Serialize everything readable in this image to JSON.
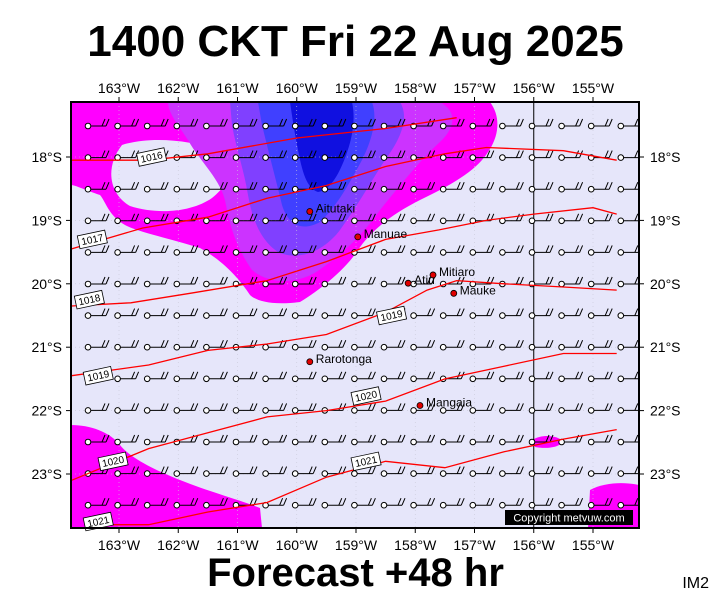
{
  "header": {
    "title": "1400 CKT Fri 22 Aug 2025"
  },
  "footer": {
    "subtitle": "Forecast +48 hr",
    "image_code": "IM2",
    "copyright": "Copyright metvuw.com"
  },
  "axes": {
    "lon_labels": [
      "163°W",
      "162°W",
      "161°W",
      "160°W",
      "159°W",
      "158°W",
      "157°W",
      "156°W",
      "155°W"
    ],
    "lat_labels": [
      "18°S",
      "19°S",
      "20°S",
      "21°S",
      "22°S",
      "23°S"
    ]
  },
  "colors": {
    "background": "#e6e6fa",
    "rain_light": "#ff00ff",
    "rain_medium": "#cc33ff",
    "rain_heavy": "#8040ff",
    "rain_heavier": "#4040ff",
    "rain_max": "#1010e0",
    "isobar": "#ff0000"
  },
  "places": [
    {
      "name": "Aitutaki",
      "lon": -159.78,
      "lat": -18.86
    },
    {
      "name": "Manuae",
      "lon": -158.97,
      "lat": -19.26
    },
    {
      "name": "Atiu",
      "lon": -158.12,
      "lat": -19.99
    },
    {
      "name": "Mitiaro",
      "lon": -157.7,
      "lat": -19.86
    },
    {
      "name": "Mauke",
      "lon": -157.35,
      "lat": -20.15
    },
    {
      "name": "Rarotonga",
      "lon": -159.78,
      "lat": -21.23
    },
    {
      "name": "Mangaia",
      "lon": -157.92,
      "lat": -21.92
    }
  ],
  "isobars": [
    {
      "label": "1016",
      "label_lon": -162.45,
      "label_lat": -18.0,
      "points": [
        [
          -163.8,
          -18.05
        ],
        [
          -162.5,
          -18.05
        ],
        [
          -161.5,
          -17.95
        ],
        [
          -160.0,
          -17.7
        ],
        [
          -158.5,
          -17.55
        ],
        [
          -157.3,
          -17.38
        ]
      ]
    },
    {
      "label": "1017",
      "label_lon": -163.45,
      "label_lat": -19.3,
      "points": [
        [
          -163.8,
          -19.45
        ],
        [
          -162.6,
          -19.12
        ],
        [
          -161.5,
          -18.95
        ],
        [
          -160.5,
          -18.65
        ],
        [
          -159.5,
          -18.45
        ],
        [
          -158.5,
          -18.15
        ],
        [
          -157.5,
          -17.95
        ],
        [
          -156.8,
          -17.85
        ],
        [
          -155.5,
          -17.9
        ],
        [
          -154.6,
          -18.05
        ]
      ]
    },
    {
      "label": "1018",
      "label_lon": -163.5,
      "label_lat": -20.25,
      "points": [
        [
          -163.8,
          -20.35
        ],
        [
          -162.8,
          -20.3
        ],
        [
          -161.8,
          -20.15
        ],
        [
          -160.5,
          -19.95
        ],
        [
          -159.5,
          -19.65
        ],
        [
          -158.5,
          -19.3
        ],
        [
          -157.6,
          -19.15
        ],
        [
          -156.8,
          -19.0
        ],
        [
          -156.0,
          -18.9
        ],
        [
          -155.0,
          -18.8
        ],
        [
          -154.6,
          -18.9
        ]
      ]
    },
    {
      "label": "1019",
      "label_lon": -163.35,
      "label_lat": -21.45,
      "points": [
        [
          -163.8,
          -21.45
        ],
        [
          -162.5,
          -21.28
        ],
        [
          -161.5,
          -21.05
        ],
        [
          -160.5,
          -20.95
        ],
        [
          -159.5,
          -20.8
        ],
        [
          -158.5,
          -20.45
        ],
        [
          -157.8,
          -20.1
        ],
        [
          -157.3,
          -19.95
        ],
        [
          -156.5,
          -20.0
        ],
        [
          -155.5,
          -20.05
        ],
        [
          -154.6,
          -20.1
        ]
      ]
    },
    {
      "label": "1019",
      "label_lon": -158.4,
      "label_lat": -20.5,
      "points": []
    },
    {
      "label": "1020",
      "label_lon": -163.1,
      "label_lat": -22.8,
      "points": [
        [
          -163.8,
          -23.1
        ],
        [
          -162.5,
          -22.6
        ],
        [
          -161.5,
          -22.35
        ],
        [
          -160.5,
          -22.1
        ],
        [
          -159.5,
          -22.0
        ],
        [
          -158.5,
          -21.85
        ],
        [
          -157.5,
          -21.5
        ],
        [
          -156.5,
          -21.3
        ],
        [
          -155.5,
          -21.1
        ],
        [
          -154.6,
          -21.1
        ]
      ]
    },
    {
      "label": "1020",
      "label_lon": -158.83,
      "label_lat": -21.77,
      "points": []
    },
    {
      "label": "1021",
      "label_lon": -163.35,
      "label_lat": -23.75,
      "points": [
        [
          -163.5,
          -23.8
        ],
        [
          -162.5,
          -23.8
        ],
        [
          -161.5,
          -23.6
        ],
        [
          -160.5,
          -23.45
        ],
        [
          -159.5,
          -23.05
        ],
        [
          -158.5,
          -22.8
        ],
        [
          -157.5,
          -22.9
        ],
        [
          -156.5,
          -22.65
        ],
        [
          -155.5,
          -22.45
        ],
        [
          -154.6,
          -22.3
        ]
      ]
    },
    {
      "label": "1021",
      "label_lon": -158.83,
      "label_lat": -22.8,
      "points": []
    }
  ]
}
